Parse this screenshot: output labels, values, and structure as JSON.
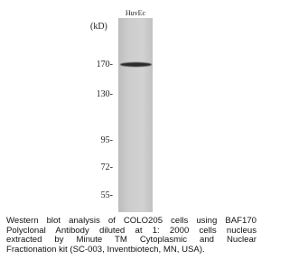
{
  "blot": {
    "lane_label": "HuvEc",
    "unit_label": "(kD)",
    "markers": [
      "170-",
      "130-",
      "95-",
      "72-",
      "55-"
    ]
  },
  "caption": {
    "lines": [
      "Western blot analysis of COLO205 cells using BAF170",
      "Polyclonal Antibody diluted at 1: 2000 cells nucleus",
      "extracted by Minute TM Cytoplasmic and Nuclear",
      "Fractionation kit (SC-003, Inventbiotech, MN, USA)."
    ]
  }
}
